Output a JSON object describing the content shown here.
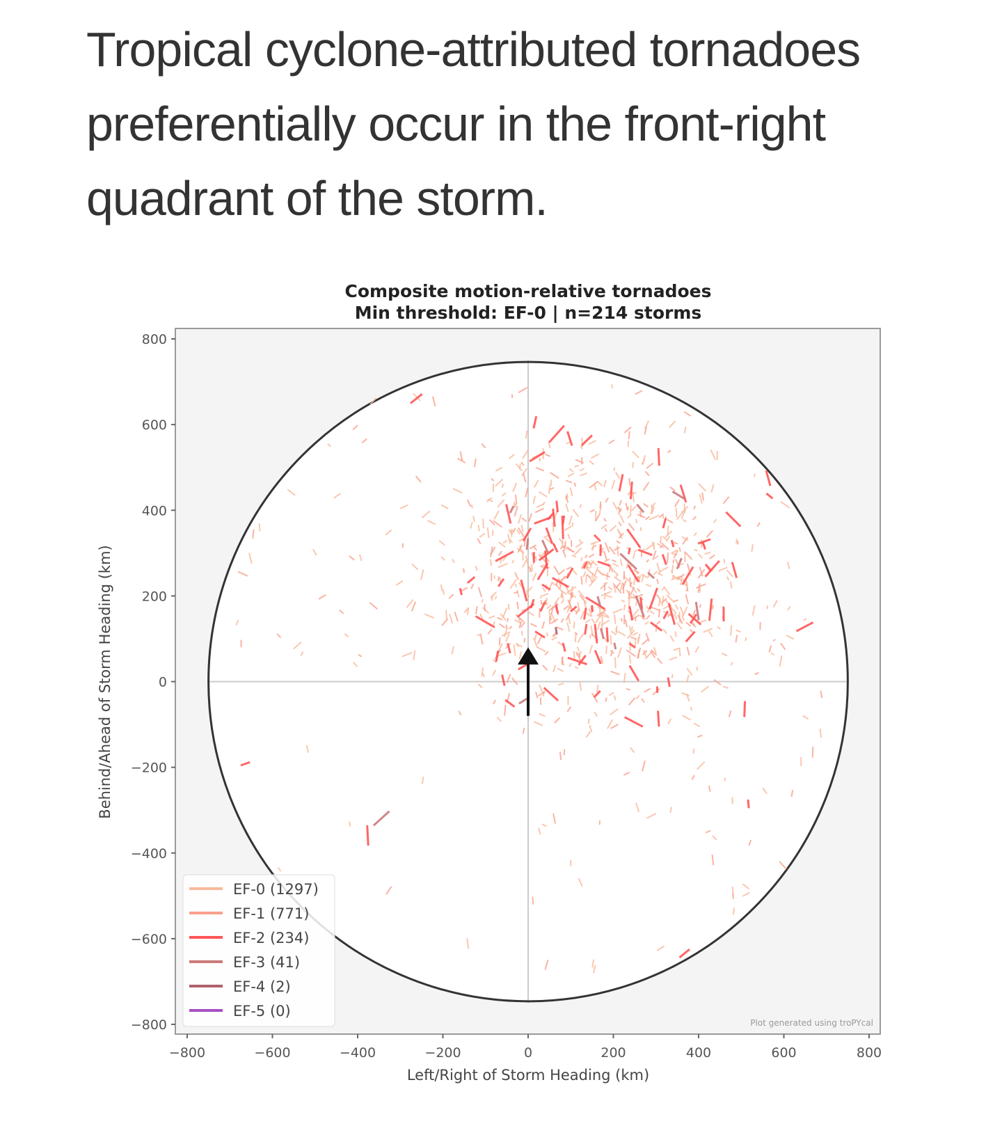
{
  "headline": "Tropical cyclone-attributed tornadoes preferentially occur in the front-right quadrant of the storm.",
  "chart_data": {
    "type": "scatter",
    "title": "Composite motion-relative tornadoes",
    "subtitle": "Min threshold: EF-0 | n=214 storms",
    "xlabel": "Left/Right of Storm Heading (km)",
    "ylabel": "Behind/Ahead of Storm Heading (km)",
    "xlim": [
      -800,
      800
    ],
    "ylim": [
      -800,
      800
    ],
    "xticks": [
      -800,
      -600,
      -400,
      -200,
      0,
      200,
      400,
      600,
      800
    ],
    "yticks": [
      -800,
      -600,
      -400,
      -200,
      0,
      200,
      400,
      600,
      800
    ],
    "range_circle_km": 750,
    "storm_heading_arrow": "up",
    "legend_position": "lower-left",
    "credit": "Plot generated using troPYcal",
    "series": [
      {
        "name": "EF-0 (1297)",
        "count": 1297,
        "color": "#f9b99c"
      },
      {
        "name": "EF-1 (771)",
        "count": 771,
        "color": "#f9a08c"
      },
      {
        "name": "EF-2 (234)",
        "count": 234,
        "color": "#ff5555"
      },
      {
        "name": "EF-3 (41)",
        "count": 41,
        "color": "#cc7a7a"
      },
      {
        "name": "EF-4 (2)",
        "count": 2,
        "color": "#b0606c"
      },
      {
        "name": "EF-5 (0)",
        "count": 0,
        "color": "#a84fc4"
      }
    ],
    "distribution_note_centroid_km": [
      180,
      250
    ]
  }
}
